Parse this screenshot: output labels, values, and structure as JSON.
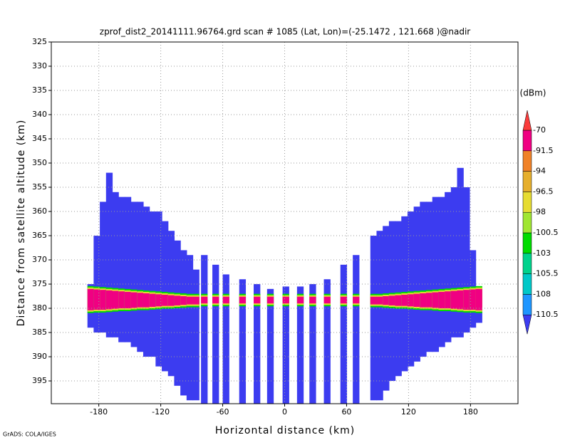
{
  "chart_data": {
    "type": "profile",
    "title": "zprof_dist2_20141111.96764.grd  scan # 1085  (Lat, Lon)=(-25.1472 , 121.668 )@nadir",
    "x_label": "Horizontal distance (km)",
    "y_label": "Distance from satellite altitude (km)",
    "footer": "GrADS: COLA/IGES",
    "xlim": [
      -226,
      226
    ],
    "ylim": [
      325,
      399.7
    ],
    "y_inverted": true,
    "grid": true,
    "xticks": [
      -180,
      -120,
      -60,
      0,
      60,
      120,
      180
    ],
    "yticks": [
      325,
      330,
      335,
      340,
      345,
      350,
      355,
      360,
      365,
      370,
      375,
      380,
      385,
      390,
      395
    ],
    "columns": {
      "x": [
        -188,
        -182,
        -176,
        -170,
        -164,
        -158,
        -152,
        -146,
        -140,
        -134,
        -128,
        -122,
        -116,
        -110,
        -104,
        -98,
        -92,
        -86,
        -78,
        -67,
        -57,
        -41,
        -27,
        -14,
        1,
        15,
        27,
        41,
        57,
        69,
        86,
        92,
        98,
        104,
        110,
        116,
        122,
        128,
        134,
        140,
        146,
        152,
        158,
        164,
        170,
        176,
        182,
        188
      ],
      "top": [
        375,
        365,
        358,
        352,
        356,
        357,
        357,
        358,
        358,
        359,
        360,
        360,
        362,
        364,
        366,
        368,
        369,
        372,
        369,
        371,
        373,
        374,
        375,
        376,
        375.5,
        375.5,
        375,
        374,
        371,
        369,
        365,
        364,
        363,
        362,
        362,
        361,
        360,
        359,
        358,
        358,
        357,
        357,
        356,
        355,
        351,
        355,
        368,
        380
      ],
      "bottom": [
        384,
        385,
        385,
        386,
        386,
        387,
        387,
        388,
        389,
        390,
        390,
        392,
        393,
        394,
        396,
        398,
        399,
        399,
        399.7,
        399.7,
        399.7,
        399.7,
        399.7,
        399.7,
        399.7,
        399.7,
        399.7,
        399.7,
        399.7,
        399.7,
        399,
        399,
        397,
        395,
        394,
        393,
        392,
        391,
        390,
        389,
        389,
        388,
        387,
        386,
        386,
        385,
        384,
        383
      ],
      "band_top": [
        376.0,
        376.1,
        376.2,
        376.3,
        376.4,
        376.5,
        376.6,
        376.7,
        376.8,
        376.9,
        377.0,
        377.1,
        377.2,
        377.3,
        377.4,
        377.5,
        377.6,
        377.6,
        377.6,
        377.6,
        377.6,
        377.6,
        377.6,
        377.6,
        377.6,
        377.6,
        377.6,
        377.6,
        377.6,
        377.6,
        377.6,
        377.6,
        377.5,
        377.4,
        377.3,
        377.2,
        377.1,
        377.0,
        376.9,
        376.8,
        376.7,
        376.6,
        376.5,
        376.4,
        376.3,
        376.2,
        376.1,
        376.0
      ],
      "band_bottom": [
        380.4,
        380.3,
        380.3,
        380.2,
        380.1,
        380.0,
        380.0,
        379.9,
        379.8,
        379.8,
        379.7,
        379.6,
        379.5,
        379.5,
        379.4,
        379.3,
        379.2,
        379.2,
        379,
        379,
        379,
        379,
        379,
        379,
        379,
        379,
        379,
        379,
        379,
        379,
        379.2,
        379.2,
        379.3,
        379.4,
        379.5,
        379.5,
        379.6,
        379.7,
        379.8,
        379.8,
        379.9,
        380.0,
        380.0,
        380.1,
        380.2,
        380.3,
        380.3,
        380.4
      ],
      "band_dbm": [
        -85,
        -85,
        -85,
        -85,
        -85,
        -85,
        -85,
        -85,
        -85,
        -85,
        -85,
        -85,
        -85,
        -85,
        -85,
        -85,
        -85,
        -85,
        -90,
        -90,
        -90,
        -90,
        -90,
        -90,
        -90,
        -90,
        -90,
        -90,
        -90,
        -90,
        -85,
        -85,
        -85,
        -85,
        -85,
        -85,
        -85,
        -85,
        -85,
        -85,
        -85,
        -85,
        -85,
        -85,
        -85,
        -85,
        -85,
        -85
      ]
    },
    "colorbar": {
      "unit": "(dBm)",
      "levels": [
        -110.5,
        -108,
        -105.5,
        -103,
        -100.5,
        -98,
        -96.5,
        -94,
        -91.5,
        -70
      ],
      "colors": [
        "#3c3cf0",
        "#1e96ff",
        "#00c8c8",
        "#00d28c",
        "#00dc00",
        "#a0e632",
        "#e6dc32",
        "#e6af2d",
        "#f08228",
        "#f00082",
        "#fa3c3c"
      ]
    }
  }
}
